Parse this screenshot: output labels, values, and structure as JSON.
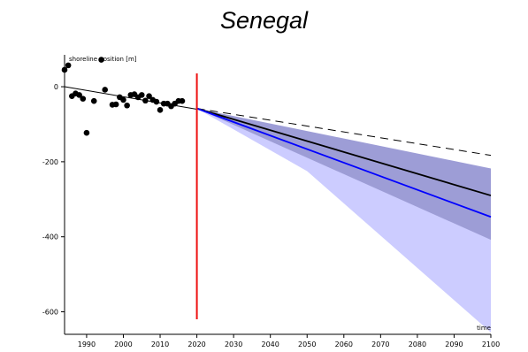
{
  "chart_data": {
    "type": "line",
    "title": "Senegal",
    "ylabel": "shoreline position [m]",
    "xlabel": "time",
    "xlim": [
      1984,
      2100
    ],
    "ylim": [
      -660,
      85
    ],
    "xticks": [
      1990,
      2000,
      2010,
      2020,
      2030,
      2040,
      2050,
      2060,
      2070,
      2080,
      2090,
      2100
    ],
    "yticks": [
      0,
      -200,
      -400,
      -600
    ],
    "grid": false,
    "observations": {
      "x": [
        1984,
        1985,
        1986,
        1987,
        1988,
        1989,
        1990,
        1992,
        1994,
        1995,
        1997,
        1998,
        1999,
        2000,
        2001,
        2002,
        2003,
        2004,
        2005,
        2006,
        2007,
        2008,
        2009,
        2010,
        2011,
        2012,
        2013,
        2014,
        2015,
        2016
      ],
      "y": [
        45,
        57,
        -25,
        -18,
        -22,
        -32,
        -123,
        -38,
        72,
        -8,
        -48,
        -47,
        -28,
        -35,
        -50,
        -22,
        -20,
        -28,
        -22,
        -37,
        -25,
        -35,
        -40,
        -62,
        -45,
        -45,
        -52,
        -45,
        -38,
        -38
      ]
    },
    "trend_line": {
      "x": [
        1984,
        2020
      ],
      "y": [
        0,
        -60
      ]
    },
    "forecast_start": 2020,
    "projections": {
      "dashed": {
        "x": [
          2020,
          2100
        ],
        "y": [
          -58,
          -183
        ]
      },
      "black": {
        "x": [
          2020,
          2100
        ],
        "y": [
          -58,
          -290
        ]
      },
      "blue": {
        "x": [
          2020,
          2100
        ],
        "y": [
          -58,
          -347
        ]
      },
      "dark_band": {
        "x": [
          2020,
          2100
        ],
        "lower": [
          -58,
          -408
        ],
        "upper": [
          -58,
          -218
        ]
      },
      "light_band": {
        "x": [
          2020,
          2050,
          2100
        ],
        "lower": [
          -58,
          -225,
          -655
        ],
        "upper": [
          -58,
          -150,
          -218
        ]
      }
    },
    "colors": {
      "points": "#000000",
      "trend": "#000000",
      "forecast_marker": "#ee1111",
      "blue_line": "#0000ff",
      "black_line": "#000000",
      "light_band": "#ccccff",
      "dark_band": "#9d9dd6"
    }
  }
}
